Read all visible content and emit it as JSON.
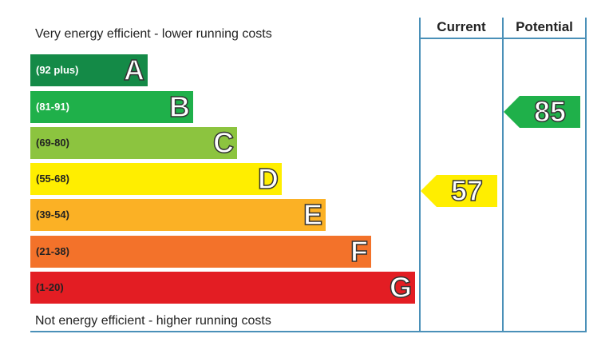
{
  "chart_data": {
    "type": "bar",
    "top_note": "Very energy efficient - lower running costs",
    "bottom_note": "Not energy efficient - higher running costs",
    "bands": [
      {
        "range": "(92 plus)",
        "letter": "A",
        "color": "#148a47",
        "text_color": "#ffffff"
      },
      {
        "range": "(81-91)",
        "letter": "B",
        "color": "#1fb04a",
        "text_color": "#ffffff"
      },
      {
        "range": "(69-80)",
        "letter": "C",
        "color": "#8cc43f",
        "text_color": "#222222"
      },
      {
        "range": "(55-68)",
        "letter": "D",
        "color": "#ffee00",
        "text_color": "#222222"
      },
      {
        "range": "(39-54)",
        "letter": "E",
        "color": "#fbb125",
        "text_color": "#222222"
      },
      {
        "range": "(21-38)",
        "letter": "F",
        "color": "#f3722a",
        "text_color": "#222222"
      },
      {
        "range": "(1-20)",
        "letter": "G",
        "color": "#e31d23",
        "text_color": "#222222"
      }
    ],
    "columns": [
      "Current",
      "Potential"
    ],
    "current": {
      "value": 57,
      "band": "D",
      "color": "#ffee00"
    },
    "potential": {
      "value": 85,
      "band": "B",
      "color": "#1fb04a"
    }
  }
}
